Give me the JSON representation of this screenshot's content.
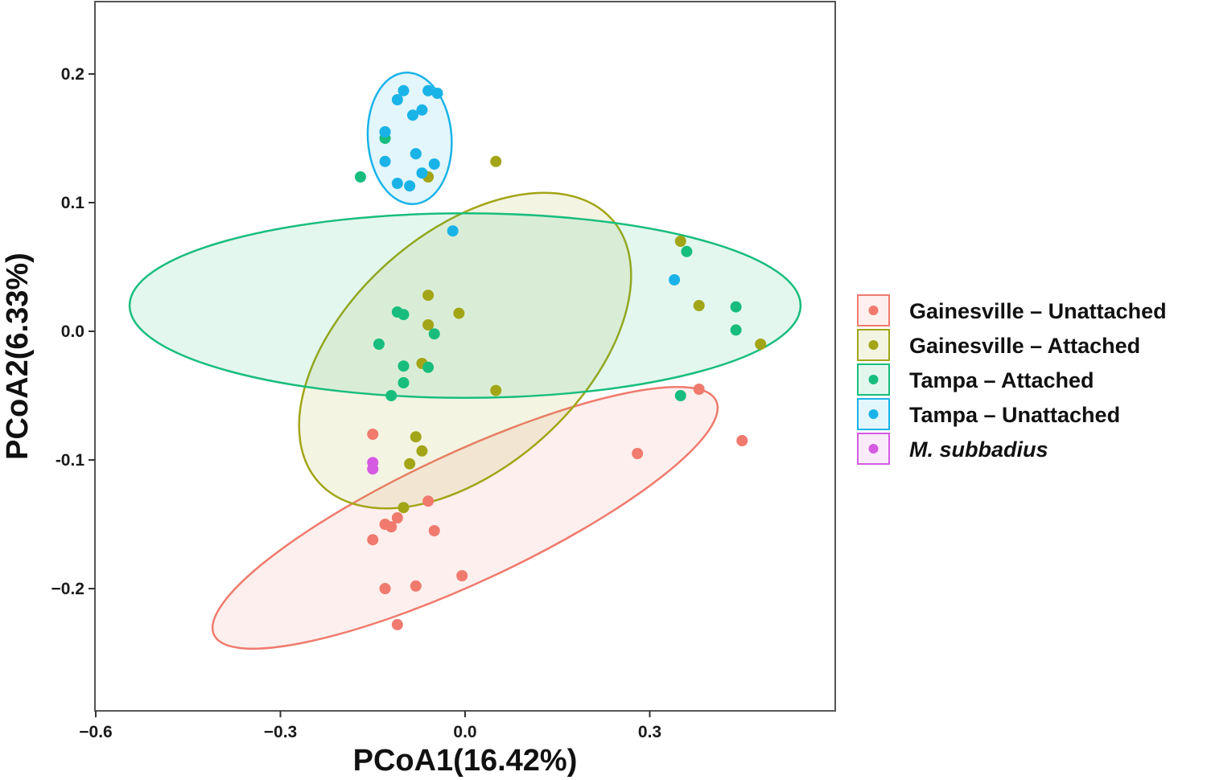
{
  "chart_data": {
    "type": "scatter",
    "xlabel": "PCoA1(16.42%)",
    "ylabel": "PCoA2(6.33%)",
    "xlim": [
      -0.6,
      0.6
    ],
    "ylim": [
      -0.3,
      0.25
    ],
    "xticks": [
      -0.6,
      -0.3,
      0.0,
      0.3
    ],
    "xtick_labels": [
      "−0.6",
      "−0.3",
      "0.0",
      "0.3"
    ],
    "yticks": [
      -0.2,
      -0.1,
      0.0,
      0.1,
      0.2
    ],
    "ytick_labels": [
      "−0.2",
      "-0.1",
      "0.0",
      "0.1",
      "0.2"
    ],
    "grid": false,
    "legend_position": "right",
    "series": [
      {
        "name": "Gainesville – Unattached",
        "color": "#F07A6E",
        "italic": false,
        "ellipse": {
          "cx": 0.0,
          "cy": -0.145,
          "rx": 0.45,
          "ry": 0.105,
          "angle_deg": 25
        },
        "points": [
          [
            -0.15,
            -0.08
          ],
          [
            -0.15,
            -0.162
          ],
          [
            -0.13,
            -0.15
          ],
          [
            -0.12,
            -0.152
          ],
          [
            -0.11,
            -0.145
          ],
          [
            -0.06,
            -0.132
          ],
          [
            -0.05,
            -0.155
          ],
          [
            -0.13,
            -0.2
          ],
          [
            -0.08,
            -0.198
          ],
          [
            -0.11,
            -0.228
          ],
          [
            -0.005,
            -0.19
          ],
          [
            0.28,
            -0.095
          ],
          [
            0.38,
            -0.045
          ],
          [
            0.45,
            -0.085
          ]
        ]
      },
      {
        "name": "Gainesville – Attached",
        "color": "#A2A516",
        "italic": false,
        "ellipse": {
          "cx": 0.0,
          "cy": -0.015,
          "rx": 0.32,
          "ry": 0.19,
          "angle_deg": 42
        },
        "points": [
          [
            0.05,
            0.132
          ],
          [
            -0.06,
            0.12
          ],
          [
            -0.06,
            0.028
          ],
          [
            -0.06,
            0.005
          ],
          [
            -0.01,
            0.014
          ],
          [
            -0.07,
            -0.025
          ],
          [
            -0.08,
            -0.082
          ],
          [
            -0.07,
            -0.093
          ],
          [
            -0.09,
            -0.103
          ],
          [
            -0.1,
            -0.137
          ],
          [
            0.05,
            -0.046
          ],
          [
            0.35,
            0.07
          ],
          [
            0.38,
            0.02
          ],
          [
            0.48,
            -0.01
          ]
        ]
      },
      {
        "name": "Tampa – Attached",
        "color": "#18BD7D",
        "italic": false,
        "ellipse": {
          "cx": 0.0,
          "cy": 0.02,
          "rx": 0.545,
          "ry": 0.15,
          "angle_deg": 0
        },
        "points": [
          [
            -0.17,
            0.12
          ],
          [
            -0.13,
            0.155
          ],
          [
            -0.13,
            0.15
          ],
          [
            -0.08,
            0.138
          ],
          [
            -0.11,
            0.015
          ],
          [
            -0.1,
            0.013
          ],
          [
            -0.05,
            -0.002
          ],
          [
            -0.14,
            -0.01
          ],
          [
            -0.1,
            -0.027
          ],
          [
            -0.06,
            -0.028
          ],
          [
            -0.1,
            -0.04
          ],
          [
            -0.12,
            -0.05
          ],
          [
            0.36,
            0.062
          ],
          [
            0.44,
            0.019
          ],
          [
            0.44,
            0.001
          ],
          [
            0.35,
            -0.05
          ]
        ]
      },
      {
        "name": "Tampa – Unattached",
        "color": "#1AB3E8",
        "italic": false,
        "ellipse": {
          "cx": -0.09,
          "cy": 0.15,
          "rx": 0.107,
          "ry": 0.068,
          "angle_deg": 94
        },
        "points": [
          [
            -0.1,
            0.187
          ],
          [
            -0.06,
            0.187
          ],
          [
            -0.045,
            0.185
          ],
          [
            -0.11,
            0.18
          ],
          [
            -0.07,
            0.172
          ],
          [
            -0.085,
            0.168
          ],
          [
            -0.13,
            0.155
          ],
          [
            -0.08,
            0.138
          ],
          [
            -0.13,
            0.132
          ],
          [
            -0.05,
            0.13
          ],
          [
            -0.07,
            0.123
          ],
          [
            -0.11,
            0.115
          ],
          [
            -0.09,
            0.113
          ],
          [
            -0.02,
            0.078
          ],
          [
            0.34,
            0.04
          ]
        ]
      },
      {
        "name": "M. subbadius",
        "color": "#D45BE2",
        "italic": true,
        "ellipse": null,
        "points": [
          [
            -0.15,
            -0.102
          ],
          [
            -0.15,
            -0.107
          ]
        ]
      }
    ]
  }
}
